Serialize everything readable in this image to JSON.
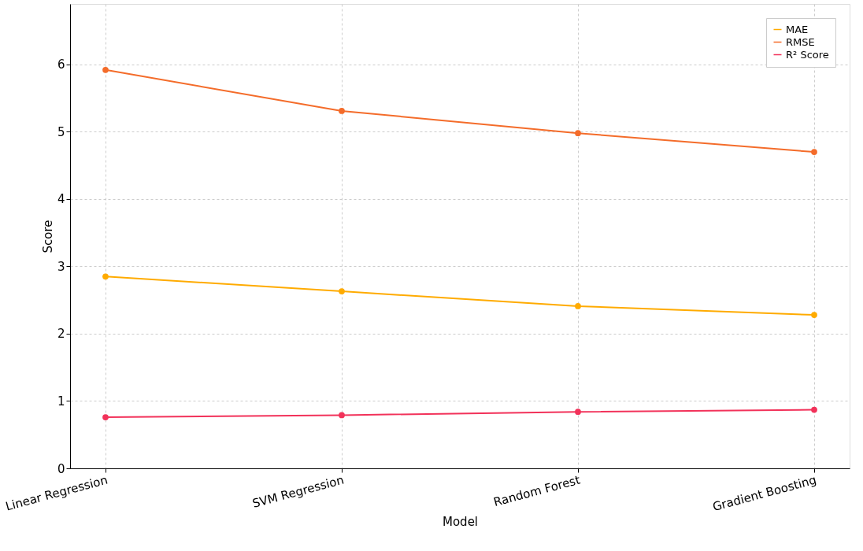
{
  "chart_data": {
    "type": "line",
    "xlabel": "Model",
    "ylabel": "Score",
    "categories": [
      "Linear Regression",
      "SVM Regression",
      "Random Forest",
      "Gradient Boosting"
    ],
    "series": [
      {
        "name": "MAE",
        "color": "#ffab00",
        "values": [
          2.85,
          2.63,
          2.41,
          2.28
        ]
      },
      {
        "name": "RMSE",
        "color": "#f46c2a",
        "values": [
          5.92,
          5.31,
          4.98,
          4.7
        ]
      },
      {
        "name": "R² Score",
        "color": "#f2325a",
        "values": [
          0.76,
          0.79,
          0.84,
          0.87
        ]
      }
    ],
    "ylim": [
      0,
      6.9
    ],
    "yticks": [
      0,
      1,
      2,
      3,
      4,
      5,
      6
    ],
    "grid": true,
    "legend": "top right",
    "marker": "circle",
    "line_style": "solid"
  }
}
